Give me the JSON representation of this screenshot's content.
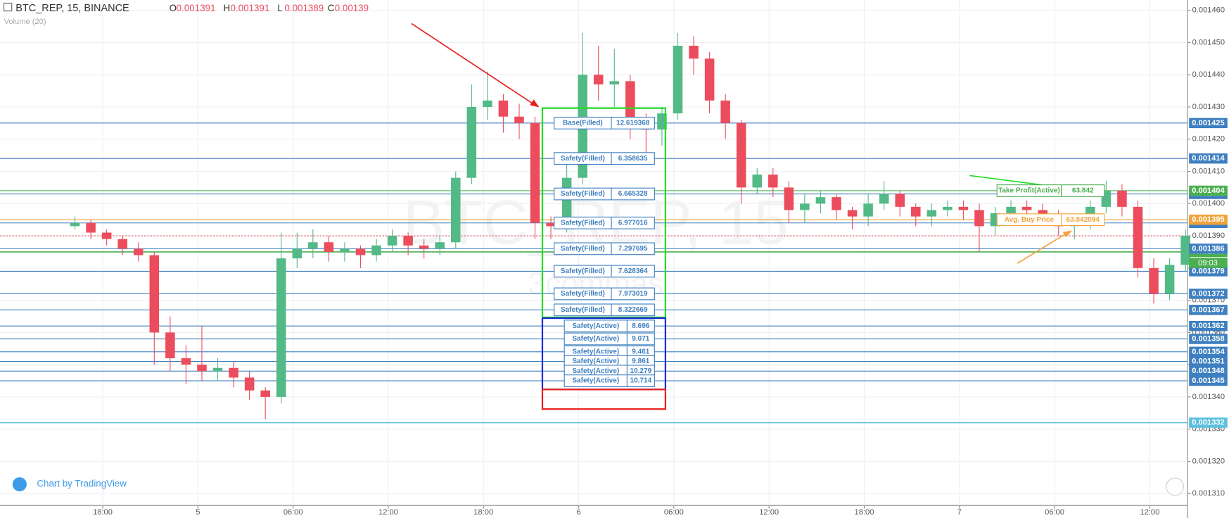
{
  "chart_data": {
    "type": "candlestick",
    "title": "BTC_REP, 15, BINANCE",
    "indicator": "Volume (20)",
    "watermark": "BTC_REP, 15",
    "watermark_sub": "3commas",
    "credit": "Chart by TradingView",
    "countdown": "09:03",
    "legend_ohlc": [
      {
        "label": "O",
        "value": 0.001391
      },
      {
        "label": "H",
        "value": 0.001391
      },
      {
        "label": "L",
        "value": 0.001389
      },
      {
        "label": "C",
        "value": 0.00139
      }
    ],
    "x": [
      -7,
      -3,
      1,
      5,
      9,
      13,
      17,
      21,
      25,
      29,
      33,
      37,
      41,
      45,
      49,
      53,
      57,
      61,
      65,
      69,
      73,
      77,
      81,
      85,
      89,
      93,
      97,
      101,
      105,
      109,
      113,
      117,
      121,
      125,
      129,
      133,
      137,
      141,
      145,
      149,
      153,
      157,
      161,
      165,
      169,
      173,
      177,
      181,
      185,
      189,
      193,
      197,
      201,
      205,
      209,
      213,
      217,
      221,
      225,
      229,
      233,
      237,
      241,
      245,
      249,
      253,
      257,
      261,
      265,
      269,
      273
    ],
    "open": [
      0.001393,
      0.001394,
      0.001391,
      0.001389,
      0.001386,
      0.001384,
      0.00136,
      0.001352,
      0.00135,
      0.001348,
      0.001349,
      0.001346,
      0.001342,
      0.00134,
      0.001383,
      0.001386,
      0.001388,
      0.001385,
      0.001386,
      0.001384,
      0.001387,
      0.00139,
      0.001387,
      0.001386,
      0.001388,
      0.001408,
      0.00143,
      0.001432,
      0.001427,
      0.001425,
      0.001394,
      0.001393,
      0.001408,
      0.00144,
      0.001437,
      0.001438,
      0.001425,
      0.001423,
      0.001428,
      0.001449,
      0.001445,
      0.001432,
      0.001425,
      0.001405,
      0.001409,
      0.001405,
      0.001398,
      0.0014,
      0.001402,
      0.001398,
      0.001396,
      0.0014,
      0.001403,
      0.001399,
      0.001396,
      0.001398,
      0.001399,
      0.001398,
      0.001393,
      0.001397,
      0.001399,
      0.001398,
      0.001396,
      0.001393,
      0.001394,
      0.001399,
      0.001404,
      0.001399,
      0.00138,
      0.001372,
      0.001381
    ],
    "high": [
      0.001396,
      0.001395,
      0.001392,
      0.00139,
      0.001388,
      0.001385,
      0.001365,
      0.001356,
      0.001362,
      0.001352,
      0.001351,
      0.001348,
      0.001343,
      0.001391,
      0.001391,
      0.001392,
      0.00139,
      0.001388,
      0.001387,
      0.001389,
      0.001392,
      0.001391,
      0.001389,
      0.00139,
      0.00141,
      0.001437,
      0.001441,
      0.001434,
      0.001431,
      0.001427,
      0.001396,
      0.001412,
      0.001453,
      0.001449,
      0.001448,
      0.00144,
      0.001428,
      0.00143,
      0.001453,
      0.001452,
      0.001447,
      0.001434,
      0.001426,
      0.001411,
      0.001411,
      0.001407,
      0.001403,
      0.001404,
      0.001403,
      0.001399,
      0.001403,
      0.001407,
      0.001404,
      0.0014,
      0.0014,
      0.001401,
      0.001401,
      0.0014,
      0.001399,
      0.001401,
      0.001401,
      0.0014,
      0.001398,
      0.001397,
      0.001401,
      0.001407,
      0.001406,
      0.001401,
      0.001383,
      0.001383,
      0.001392
    ],
    "low": [
      0.001392,
      0.001389,
      0.001387,
      0.001384,
      0.001382,
      0.00135,
      0.001348,
      0.001344,
      0.001345,
      0.001345,
      0.001343,
      0.001339,
      0.001333,
      0.001338,
      0.00138,
      0.001383,
      0.001382,
      0.001382,
      0.00138,
      0.001382,
      0.001385,
      0.001384,
      0.001383,
      0.001384,
      0.001386,
      0.001406,
      0.001426,
      0.001422,
      0.00142,
      0.001389,
      0.001389,
      0.001391,
      0.001406,
      0.001432,
      0.00143,
      0.00142,
      0.001414,
      0.001418,
      0.001426,
      0.00144,
      0.001428,
      0.00142,
      0.0014,
      0.001403,
      0.001402,
      0.001394,
      0.001394,
      0.001397,
      0.001395,
      0.001392,
      0.001393,
      0.001398,
      0.001396,
      0.001393,
      0.001393,
      0.001396,
      0.001395,
      0.001385,
      0.00139,
      0.001395,
      0.001395,
      0.001393,
      0.00139,
      0.001389,
      0.001392,
      0.001397,
      0.001396,
      0.001377,
      0.001369,
      0.00137,
      0.001379
    ],
    "close": [
      0.001394,
      0.001391,
      0.001389,
      0.001386,
      0.001384,
      0.00136,
      0.001352,
      0.00135,
      0.001348,
      0.001349,
      0.001346,
      0.001342,
      0.00134,
      0.001383,
      0.001386,
      0.001388,
      0.001385,
      0.001386,
      0.001384,
      0.001387,
      0.00139,
      0.001387,
      0.001386,
      0.001388,
      0.001408,
      0.00143,
      0.001432,
      0.001427,
      0.001425,
      0.001394,
      0.001393,
      0.001408,
      0.00144,
      0.001437,
      0.001438,
      0.001425,
      0.001423,
      0.001428,
      0.001449,
      0.001445,
      0.001432,
      0.001425,
      0.001405,
      0.001409,
      0.001405,
      0.001398,
      0.0014,
      0.001402,
      0.001398,
      0.001396,
      0.0014,
      0.001403,
      0.001399,
      0.001396,
      0.001398,
      0.001399,
      0.001398,
      0.001393,
      0.001397,
      0.001399,
      0.001398,
      0.001396,
      0.001393,
      0.001394,
      0.001399,
      0.001404,
      0.001399,
      0.00138,
      0.001372,
      0.001381,
      0.00139
    ],
    "up_color": "#53b987",
    "down_color": "#eb4d5c",
    "xlim": [
      -25.9,
      273.5
    ],
    "xticks": [
      {
        "value": 0,
        "label": "18:00"
      },
      {
        "value": 24,
        "label": "5"
      },
      {
        "value": 48,
        "label": "06:00"
      },
      {
        "value": 72,
        "label": "12:00"
      },
      {
        "value": 96,
        "label": "18:00"
      },
      {
        "value": 120,
        "label": "6"
      },
      {
        "value": 144,
        "label": "06:00"
      },
      {
        "value": 168,
        "label": "12:00"
      },
      {
        "value": 192,
        "label": "18:00"
      },
      {
        "value": 216,
        "label": "7"
      },
      {
        "value": 240,
        "label": "06:00"
      },
      {
        "value": 264,
        "label": "12:00"
      }
    ],
    "ylim": [
      0.0013063,
      0.0014632
    ],
    "yticks": [
      {
        "value": 0.00131,
        "label": "0.001310"
      },
      {
        "value": 0.00132,
        "label": "0.001320"
      },
      {
        "value": 0.00133,
        "label": "0.001330"
      },
      {
        "value": 0.00134,
        "label": "0.001340"
      },
      {
        "value": 0.00135,
        "label": "0.001350"
      },
      {
        "value": 0.00136,
        "label": "0.001360"
      },
      {
        "value": 0.00137,
        "label": "0.001370"
      },
      {
        "value": 0.00138,
        "label": "0.001380"
      },
      {
        "value": 0.00139,
        "label": "0.001390"
      },
      {
        "value": 0.0014,
        "label": "0.001400"
      },
      {
        "value": 0.00141,
        "label": "0.001410"
      },
      {
        "value": 0.00142,
        "label": "0.001420"
      },
      {
        "value": 0.00143,
        "label": "0.001430"
      },
      {
        "value": 0.00144,
        "label": "0.001440"
      },
      {
        "value": 0.00145,
        "label": "0.001450"
      },
      {
        "value": 0.00146,
        "label": "0.001460"
      }
    ],
    "grid": true,
    "orders": [
      {
        "label": "Base(Filled)",
        "amount": 12.619368,
        "price": 0.001425,
        "color": "#3d7fc0"
      },
      {
        "label": "Safety(Filled)",
        "amount": 6.358635,
        "price": 0.001414,
        "color": "#3d7fc0"
      },
      {
        "label": "Safety(Filled)",
        "amount": 6.665328,
        "price": 0.001403,
        "color": "#3d7fc0"
      },
      {
        "label": "Safety(Filled)",
        "amount": 6.977016,
        "price": 0.001394,
        "color": "#3d7fc0"
      },
      {
        "label": "Safety(Filled)",
        "amount": 7.297695,
        "price": 0.001386,
        "color": "#3d7fc0"
      },
      {
        "label": "Safety(Filled)",
        "amount": 7.628364,
        "price": 0.001379,
        "color": "#3d7fc0"
      },
      {
        "label": "Safety(Filled)",
        "amount": 7.973019,
        "price": 0.001372,
        "color": "#3d7fc0"
      },
      {
        "label": "Safety(Filled)",
        "amount": 8.322669,
        "price": 0.001367,
        "color": "#3d7fc0"
      },
      {
        "label": "Safety(Active)",
        "amount": 8.696,
        "price": 0.001362,
        "color": "#3d7fc0"
      },
      {
        "label": "Safety(Active)",
        "amount": 9.071,
        "price": 0.001358,
        "color": "#3d7fc0"
      },
      {
        "label": "Safety(Active)",
        "amount": 9.461,
        "price": 0.001354,
        "color": "#3d7fc0"
      },
      {
        "label": "Safety(Active)",
        "amount": 9.861,
        "price": 0.001351,
        "color": "#3d7fc0"
      },
      {
        "label": "Safety(Active)",
        "amount": 10.279,
        "price": 0.001348,
        "color": "#3d7fc0"
      },
      {
        "label": "Safety(Active)",
        "amount": 10.714,
        "price": 0.001345,
        "color": "#3d7fc0"
      },
      {
        "label": "Take Profit(Active)",
        "amount": 63.842,
        "price": 0.001404,
        "color": "#4caf50"
      },
      {
        "label": "Avg. Buy Price",
        "amount": 63.842094,
        "price": 0.001395,
        "color": "#f2a33a"
      }
    ],
    "price_lines": [
      {
        "price": 0.001385,
        "color": "#4caf50"
      },
      {
        "price": 0.001332,
        "color": "#5bc0de"
      }
    ]
  }
}
